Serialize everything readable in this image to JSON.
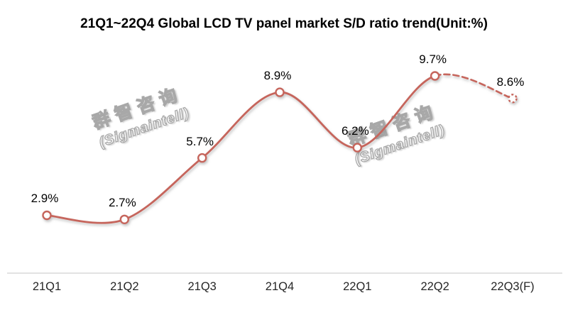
{
  "title": "21Q1~22Q4 Global LCD TV panel market S/D ratio trend(Unit:%)",
  "watermark": {
    "cn": "群智咨询",
    "en": "(Sigmaintell)"
  },
  "colors": {
    "background": "#ffffff",
    "line": "#c6655b",
    "marker_fill": "#ffffff",
    "data_label": "#000000",
    "axis_line": "#d9d9d9",
    "axis_label": "#262626",
    "watermark_outline": "#a8a8a8",
    "title_color": "#000000"
  },
  "chart_data": {
    "type": "line",
    "smooth": true,
    "title": "21Q1~22Q4 Global LCD TV panel market S/D ratio trend(Unit:%)",
    "categories": [
      "21Q1",
      "21Q2",
      "21Q3",
      "21Q4",
      "22Q1",
      "22Q2",
      "22Q3(F)"
    ],
    "values": [
      2.9,
      2.7,
      5.7,
      8.9,
      6.2,
      9.7,
      8.6
    ],
    "point_labels": [
      "2.9%",
      "2.7%",
      "5.7%",
      "8.9%",
      "6.2%",
      "9.7%",
      "8.6%"
    ],
    "forecast_from_index": 5,
    "forecast_style": "dashed",
    "marker": "open-circle",
    "line_color": "#c6655b",
    "grid": false,
    "legend": "none",
    "y_axis_visible": false,
    "x_axis_line_color": "#d9d9d9"
  }
}
